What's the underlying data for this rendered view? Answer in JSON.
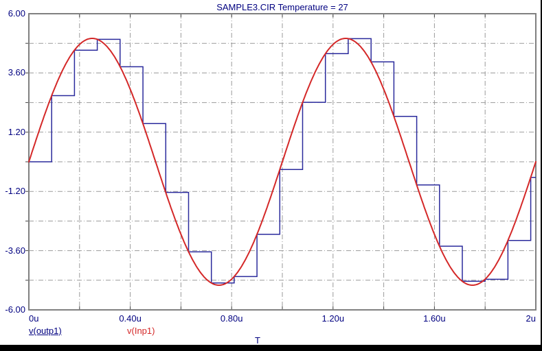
{
  "window": {
    "background": "#ffffff",
    "frame_color": "#000000"
  },
  "chart_data": {
    "type": "line",
    "title": "SAMPLE3.CIR Temperature = 27",
    "xlabel": "T",
    "ylabel": "",
    "xlim": [
      0,
      2
    ],
    "ylim": [
      -6,
      6
    ],
    "x_unit": "microseconds (u)",
    "x_grid_step": 0.2,
    "y_grid_step": 1.2,
    "grid": true,
    "grid_color": "#9a9a9a",
    "border_color": "#808080",
    "tick_color": "#404040",
    "text_color": "#000080",
    "x_ticks": [
      {
        "t": 0,
        "label": "0u",
        "align": "left"
      },
      {
        "t": 0.4,
        "label": "0.40u",
        "align": "center"
      },
      {
        "t": 0.8,
        "label": "0.80u",
        "align": "center"
      },
      {
        "t": 1.2,
        "label": "1.20u",
        "align": "center"
      },
      {
        "t": 1.6,
        "label": "1.60u",
        "align": "center"
      },
      {
        "t": 2,
        "label": "2u",
        "align": "right"
      }
    ],
    "y_ticks": [
      {
        "v": 6,
        "label": "6.00"
      },
      {
        "v": 3.6,
        "label": "3.60"
      },
      {
        "v": 1.2,
        "label": "1.20"
      },
      {
        "v": -1.2,
        "label": "-1.20"
      },
      {
        "v": -3.6,
        "label": "-3.60"
      },
      {
        "v": -6,
        "label": "-6.00"
      }
    ],
    "series": [
      {
        "name": "v(outp1)",
        "type": "step-hold",
        "color": "#2a2a9c",
        "stroke_width": 1.5,
        "sample_interval": 0.09,
        "samples": [
          [
            0,
            0
          ],
          [
            0.09,
            2.68
          ],
          [
            0.18,
            4.52
          ],
          [
            0.27,
            4.96
          ],
          [
            0.36,
            3.85
          ],
          [
            0.45,
            1.55
          ],
          [
            0.54,
            -1.24
          ],
          [
            0.63,
            -3.65
          ],
          [
            0.72,
            -4.91
          ],
          [
            0.81,
            -4.65
          ],
          [
            0.9,
            -2.94
          ],
          [
            0.99,
            -0.31
          ],
          [
            1.08,
            2.41
          ],
          [
            1.17,
            4.38
          ],
          [
            1.26,
            4.99
          ],
          [
            1.35,
            4.05
          ],
          [
            1.44,
            1.84
          ],
          [
            1.53,
            -0.94
          ],
          [
            1.62,
            -3.42
          ],
          [
            1.71,
            -4.84
          ],
          [
            1.8,
            -4.76
          ],
          [
            1.89,
            -3.19
          ],
          [
            1.98,
            -0.63
          ]
        ],
        "hold_until": 2
      },
      {
        "name": "v(Inp1)",
        "type": "sine",
        "color": "#d42828",
        "stroke_width": 2,
        "amplitude": 5,
        "period": 1,
        "phase": 0,
        "offset": 0
      }
    ],
    "legend": [
      {
        "label": "v(outp1)",
        "color": "#000080",
        "underline": true
      },
      {
        "label": "v(Inp1)",
        "color": "#d42828",
        "underline": false
      }
    ],
    "legend_position": "bottom-left"
  }
}
